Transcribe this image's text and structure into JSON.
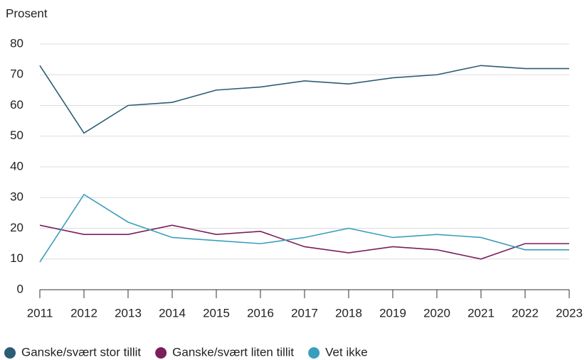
{
  "chart_data": {
    "type": "line",
    "ylabel": "Prosent",
    "x": [
      2011,
      2012,
      2013,
      2014,
      2015,
      2016,
      2017,
      2018,
      2019,
      2020,
      2021,
      2022,
      2023
    ],
    "xlim": [
      2011,
      2023
    ],
    "xticks": [
      2011,
      2012,
      2013,
      2014,
      2015,
      2016,
      2017,
      2018,
      2019,
      2020,
      2021,
      2022,
      2023
    ],
    "ylim": [
      0,
      80
    ],
    "yticks": [
      0,
      10,
      20,
      30,
      40,
      50,
      60,
      70,
      80
    ],
    "grid": true,
    "legend": "bottom",
    "series": [
      {
        "name": "Ganske/svært stor tillit",
        "color": "#2b5d75",
        "values": [
          73,
          51,
          60,
          61,
          65,
          66,
          68,
          67,
          69,
          70,
          73,
          72,
          72
        ]
      },
      {
        "name": "Ganske/svært liten tillit",
        "color": "#7a1f5c",
        "values": [
          21,
          18,
          18,
          21,
          18,
          19,
          14,
          12,
          14,
          13,
          10,
          15,
          15
        ]
      },
      {
        "name": "Vet ikke",
        "color": "#3a9fbd",
        "values": [
          9,
          31,
          22,
          17,
          16,
          15,
          17,
          20,
          17,
          18,
          17,
          13,
          13
        ]
      }
    ]
  }
}
